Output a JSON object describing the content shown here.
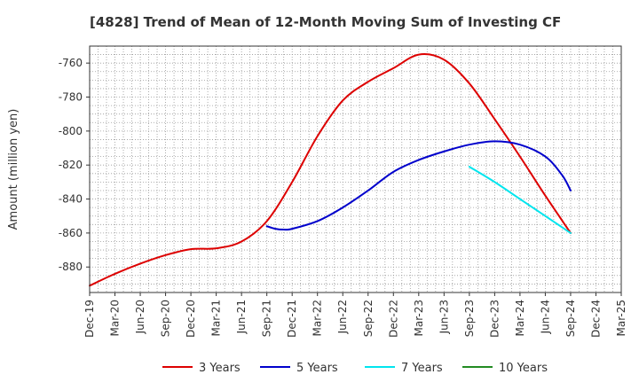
{
  "chart_data": {
    "type": "line",
    "title": "[4828]  Trend of Mean of 12-Month Moving Sum of Investing CF",
    "ylabel": "Amount (million yen)",
    "xlabel": "",
    "x_ticks": [
      "Dec-19",
      "Mar-20",
      "Jun-20",
      "Sep-20",
      "Dec-20",
      "Mar-21",
      "Jun-21",
      "Sep-21",
      "Dec-21",
      "Mar-22",
      "Jun-22",
      "Sep-22",
      "Dec-22",
      "Mar-23",
      "Jun-23",
      "Sep-23",
      "Dec-23",
      "Mar-24",
      "Jun-24",
      "Sep-24",
      "Dec-24",
      "Mar-25"
    ],
    "y_ticks": [
      -760,
      -780,
      -800,
      -820,
      -840,
      -860,
      -880
    ],
    "ylim": [
      -895,
      -750
    ],
    "grid": true,
    "legend_position": "bottom",
    "series": [
      {
        "name": "3 Years",
        "color": "#dd0000",
        "x": [
          "Dec-19",
          "Mar-20",
          "Jun-20",
          "Sep-20",
          "Dec-20",
          "Mar-21",
          "Jun-21",
          "Sep-21",
          "Dec-21",
          "Mar-22",
          "Jun-22",
          "Sep-22",
          "Dec-22",
          "Mar-23",
          "Jun-23",
          "Sep-23",
          "Dec-23",
          "Mar-24",
          "Jun-24",
          "Sep-24"
        ],
        "values": [
          -891,
          -884,
          -878,
          -873,
          -869.5,
          -869,
          -865,
          -853,
          -830,
          -803,
          -782,
          -771,
          -763,
          -755,
          -758,
          -772,
          -793,
          -815,
          -838,
          -860
        ]
      },
      {
        "name": "5 Years",
        "color": "#0000cc",
        "x": [
          "Sep-21",
          "Oct-21",
          "Nov-21",
          "Dec-21",
          "Mar-22",
          "Jun-22",
          "Sep-22",
          "Dec-22",
          "Mar-23",
          "Jun-23",
          "Sep-23",
          "Dec-23",
          "Mar-24",
          "Jun-24",
          "Aug-24",
          "Sep-24"
        ],
        "values": [
          -856,
          -857.5,
          -858,
          -857.5,
          -853,
          -845,
          -835,
          -824,
          -817,
          -812,
          -808,
          -806,
          -808,
          -815,
          -826,
          -835
        ]
      },
      {
        "name": "7 Years",
        "color": "#00e5ee",
        "x": [
          "Sep-23",
          "Dec-23",
          "Mar-24",
          "Jun-24",
          "Sep-24"
        ],
        "values": [
          -821,
          -830,
          -840,
          -850,
          -860
        ]
      },
      {
        "name": "10 Years",
        "color": "#228b22",
        "x": [],
        "values": []
      }
    ]
  }
}
